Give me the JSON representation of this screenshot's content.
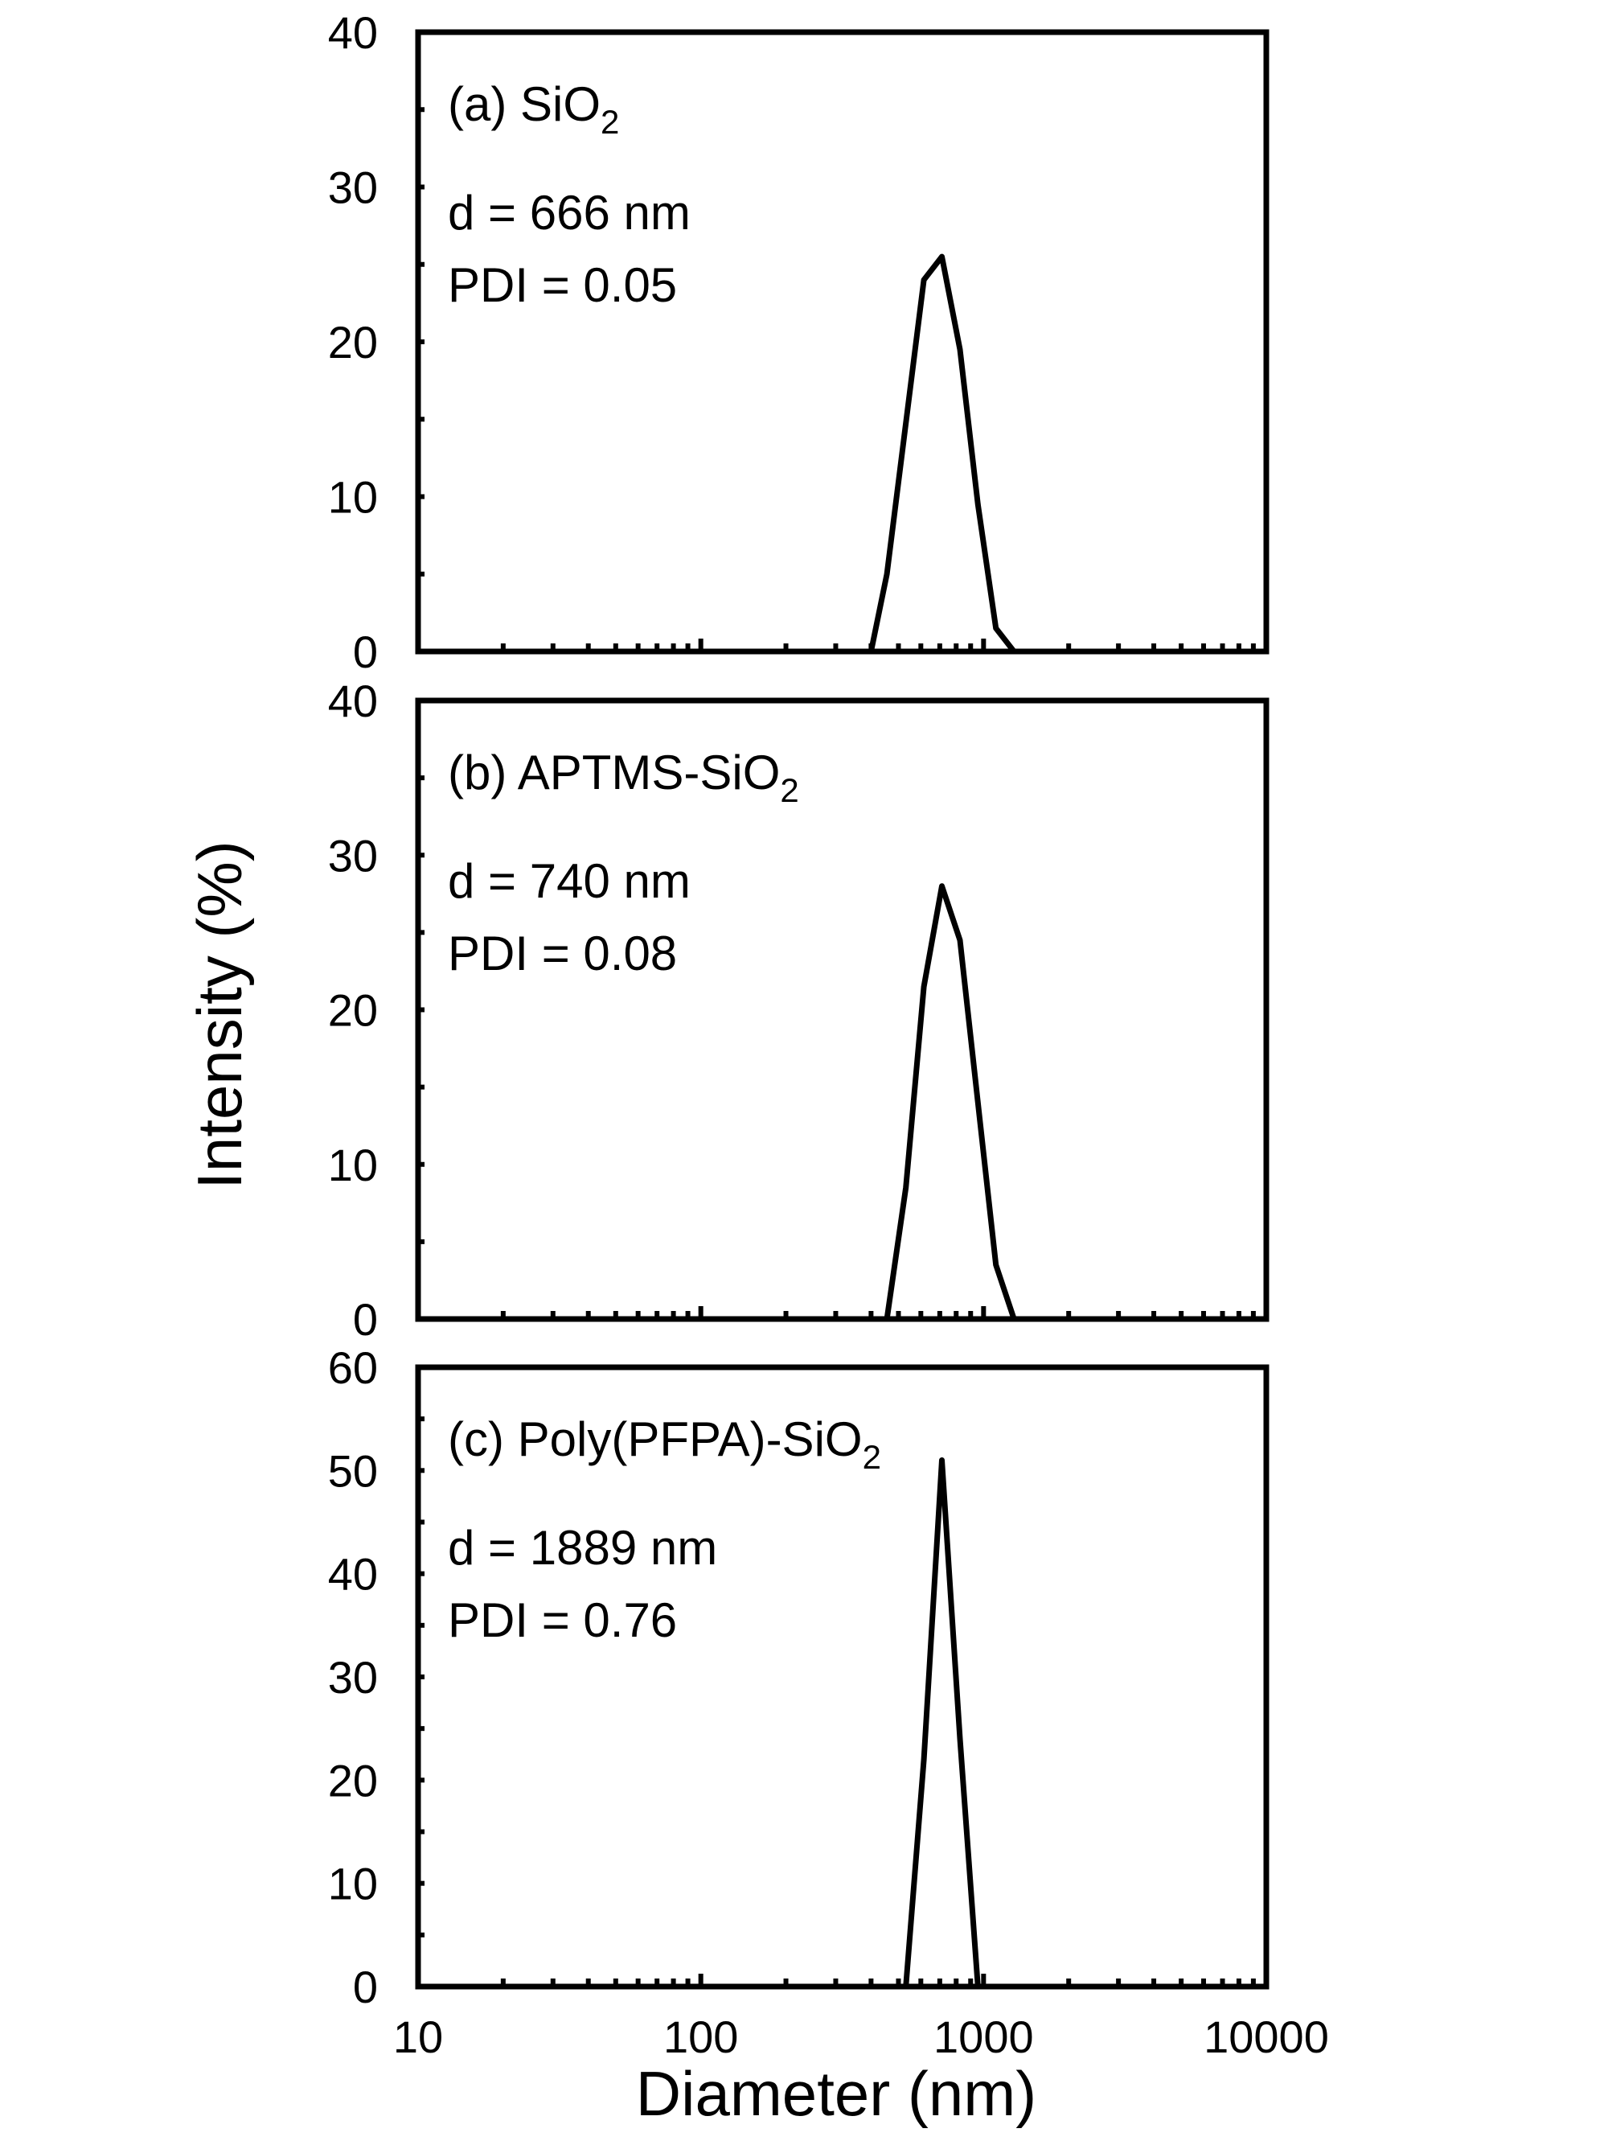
{
  "chart_data": {
    "type": "line",
    "xlabel": "Diameter (nm)",
    "ylabel": "Intensity (%)",
    "x_scale": "log",
    "xlim": [
      10,
      10000
    ],
    "x_ticks": [
      "10",
      "100",
      "1000",
      "10000"
    ],
    "panels": [
      {
        "label": "(a) SiO",
        "label_sub": "2",
        "d_text": "d = 666 nm",
        "pdi_text": "PDI = 0.05",
        "ylim": [
          0,
          40
        ],
        "y_ticks": [
          "0",
          "10",
          "20",
          "30",
          "40"
        ],
        "series": [
          {
            "x": [
              400,
              455,
              615,
              712,
              825,
              955,
              1106,
              1281
            ],
            "y": [
              0,
              5,
              24,
              25.5,
              19.5,
              9.5,
              1.5,
              0
            ]
          }
        ]
      },
      {
        "label": "(b) APTMS-SiO",
        "label_sub": "2",
        "d_text": "d = 740 nm",
        "pdi_text": "PDI = 0.08",
        "ylim": [
          0,
          40
        ],
        "y_ticks": [
          "0",
          "10",
          "20",
          "30",
          "40"
        ],
        "series": [
          {
            "x": [
              455,
              531,
              615,
              712,
              825,
              955,
              1106,
              1281
            ],
            "y": [
              0,
              8.5,
              21.5,
              28,
              24.5,
              14,
              3.5,
              0
            ]
          }
        ]
      },
      {
        "label": "(c) Poly(PFPA)-SiO",
        "label_sub": "2",
        "d_text": "d = 1889 nm",
        "pdi_text": "PDI = 0.76",
        "ylim": [
          0,
          60
        ],
        "y_ticks": [
          "0",
          "10",
          "20",
          "30",
          "40",
          "50",
          "60"
        ],
        "series": [
          {
            "x": [
              531,
              615,
              712,
              825,
              955
            ],
            "y": [
              0,
              22,
              51,
              24,
              0
            ]
          }
        ]
      }
    ]
  }
}
